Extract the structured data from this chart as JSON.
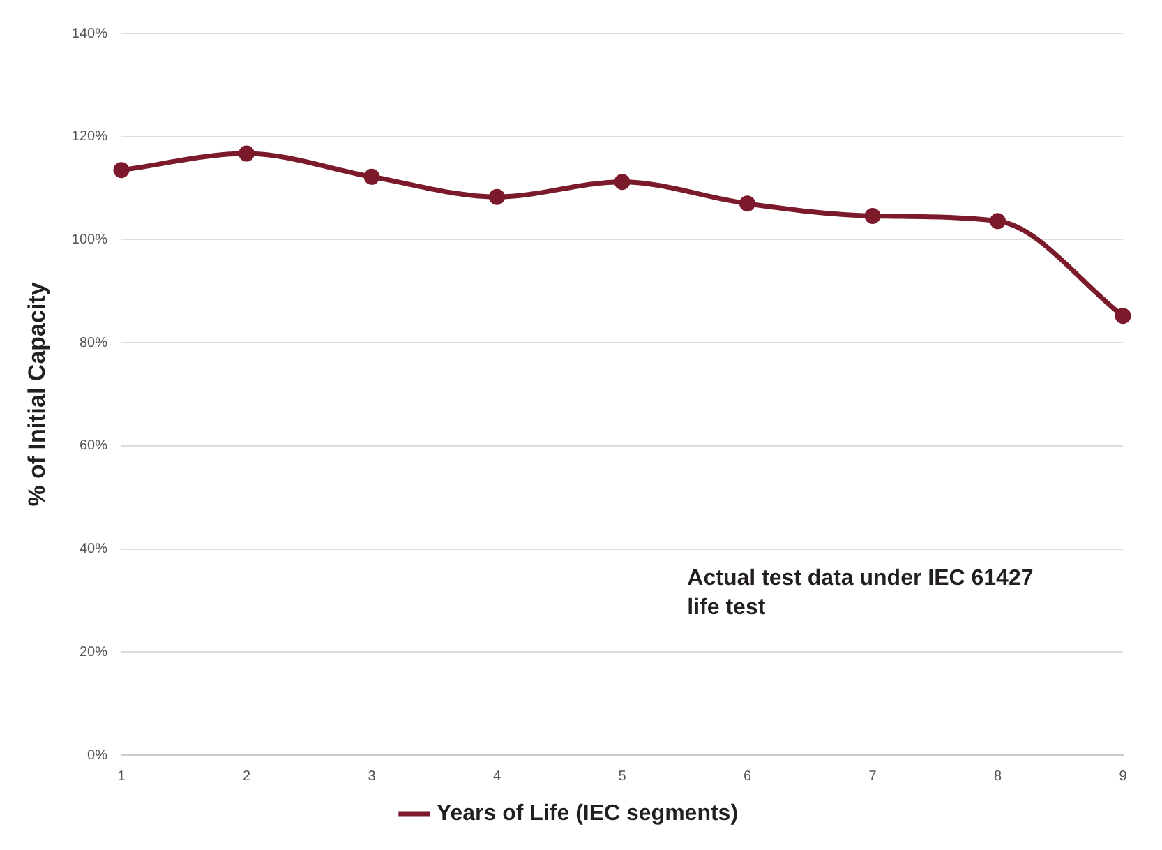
{
  "chart_data": {
    "type": "line",
    "ylabel": "% of Initial Capacity",
    "categories": [
      "1",
      "2",
      "3",
      "4",
      "5",
      "6",
      "7",
      "8",
      "9"
    ],
    "series": [
      {
        "name": "Years of Life (IEC segments)",
        "color": "#7b1a2b",
        "values": [
          113.5,
          116.7,
          112.2,
          108.3,
          111.2,
          107,
          104.6,
          103.6,
          85.2
        ]
      }
    ],
    "ylim": [
      0,
      140
    ],
    "yticks": [
      {
        "value": 0,
        "label": "0%"
      },
      {
        "value": 20,
        "label": "20%"
      },
      {
        "value": 40,
        "label": "40%"
      },
      {
        "value": 60,
        "label": "60%"
      },
      {
        "value": 80,
        "label": "80%"
      },
      {
        "value": 100,
        "label": "100%"
      },
      {
        "value": 120,
        "label": "120%"
      },
      {
        "value": 140,
        "label": "140%"
      }
    ],
    "grid": "y",
    "legend": "bottom",
    "marker": "circle",
    "line_style": "solid",
    "annotations": [
      "Actual test data under IEC 61427 life test"
    ]
  }
}
